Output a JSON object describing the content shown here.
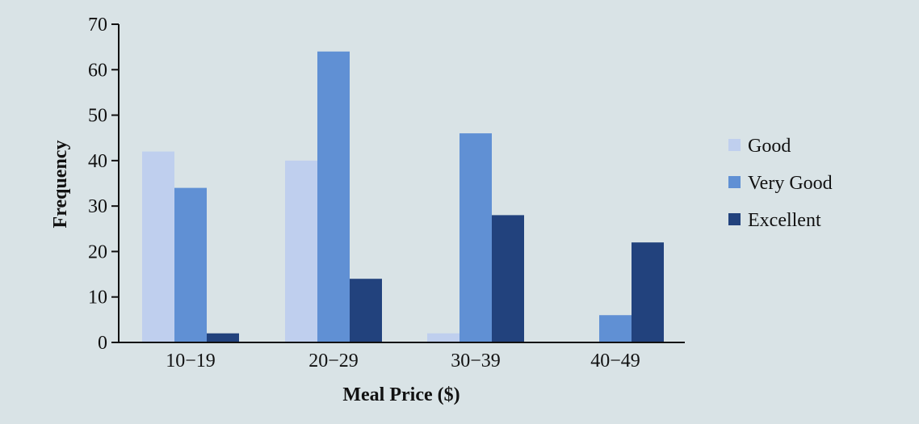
{
  "chart_data": {
    "type": "bar",
    "categories": [
      "10−19",
      "20−29",
      "30−39",
      "40−49"
    ],
    "series": [
      {
        "name": "Good",
        "values": [
          42,
          40,
          2,
          0
        ],
        "color": "#bfcfee"
      },
      {
        "name": "Very Good",
        "values": [
          34,
          64,
          46,
          6
        ],
        "color": "#6090d4"
      },
      {
        "name": "Excellent",
        "values": [
          2,
          14,
          28,
          22
        ],
        "color": "#22427d"
      }
    ],
    "xlabel": "Meal Price ($)",
    "ylabel": "Frequency",
    "ylim": [
      0,
      70
    ],
    "yticks": [
      0,
      10,
      20,
      30,
      40,
      50,
      60,
      70
    ],
    "grid": false,
    "legend_position": "right"
  },
  "colors": {
    "background": "#d9e3e6",
    "axis": "#111111"
  }
}
